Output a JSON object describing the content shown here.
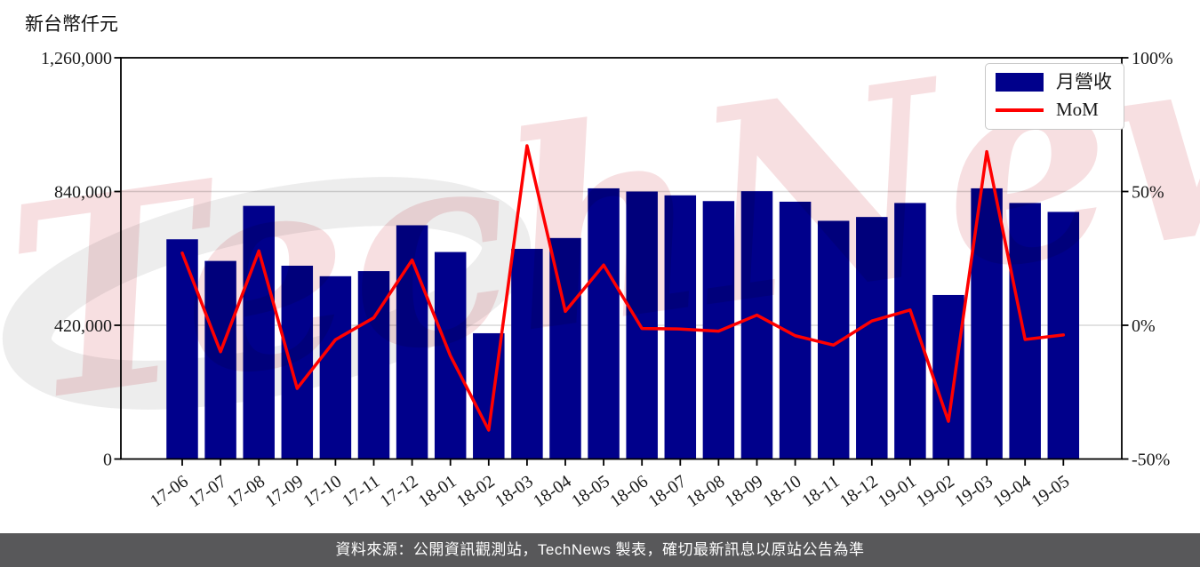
{
  "header": {
    "y_axis_title": "新台幣仟元"
  },
  "legend": {
    "items": [
      {
        "label": "月營收",
        "type": "bar",
        "color": "#00008B"
      },
      {
        "label": "MoM",
        "type": "line",
        "color": "#ff0000"
      }
    ]
  },
  "watermark": {
    "text": "TechNews",
    "pink": "#f7dfe1",
    "gray": "#ededed"
  },
  "footer": {
    "caption": "資料來源：公開資訊觀測站，TechNews 製表，確切最新訊息以原站公告為準",
    "background": "#58585a",
    "text_color": "#ffffff"
  },
  "chart_data": {
    "type": "bar",
    "title": "",
    "categories": [
      "17-06",
      "17-07",
      "17-08",
      "17-09",
      "17-10",
      "17-11",
      "17-12",
      "18-01",
      "18-02",
      "18-03",
      "18-04",
      "18-05",
      "18-06",
      "18-07",
      "18-08",
      "18-09",
      "18-10",
      "18-11",
      "18-12",
      "19-01",
      "19-02",
      "19-03",
      "19-04",
      "19-05"
    ],
    "series": [
      {
        "name": "月營收",
        "type": "bar",
        "axis": "left",
        "color": "#00008B",
        "values": [
          690000,
          622000,
          795000,
          607000,
          574000,
          590000,
          734000,
          650000,
          395000,
          660000,
          694000,
          850000,
          840000,
          828000,
          810000,
          841000,
          808000,
          748000,
          760000,
          804000,
          515000,
          850000,
          804000,
          776000
        ]
      },
      {
        "name": "MoM",
        "type": "line",
        "axis": "right",
        "color": "#ff0000",
        "unit": "%",
        "values": [
          27.0,
          -9.9,
          27.8,
          -23.6,
          -5.4,
          2.8,
          24.4,
          -11.4,
          -39.2,
          67.1,
          5.2,
          22.5,
          -1.2,
          -1.4,
          -2.2,
          3.8,
          -3.9,
          -7.4,
          1.6,
          5.7,
          -35.9,
          64.9,
          -5.3,
          -3.6
        ]
      }
    ],
    "left_axis": {
      "title": "新台幣仟元",
      "min": 0,
      "max": 1260000,
      "ticks": [
        0,
        420000,
        840000,
        1260000
      ],
      "tick_labels": [
        "0",
        "420,000",
        "840,000",
        "1,260,000"
      ]
    },
    "right_axis": {
      "min": -50,
      "max": 100,
      "ticks": [
        -50,
        0,
        50,
        100
      ],
      "tick_labels": [
        "-50%",
        "0%",
        "50%",
        "100%"
      ]
    },
    "grid": "horizontal",
    "gridline_color": "#d8d8d8",
    "legend_position": "upper-right"
  }
}
